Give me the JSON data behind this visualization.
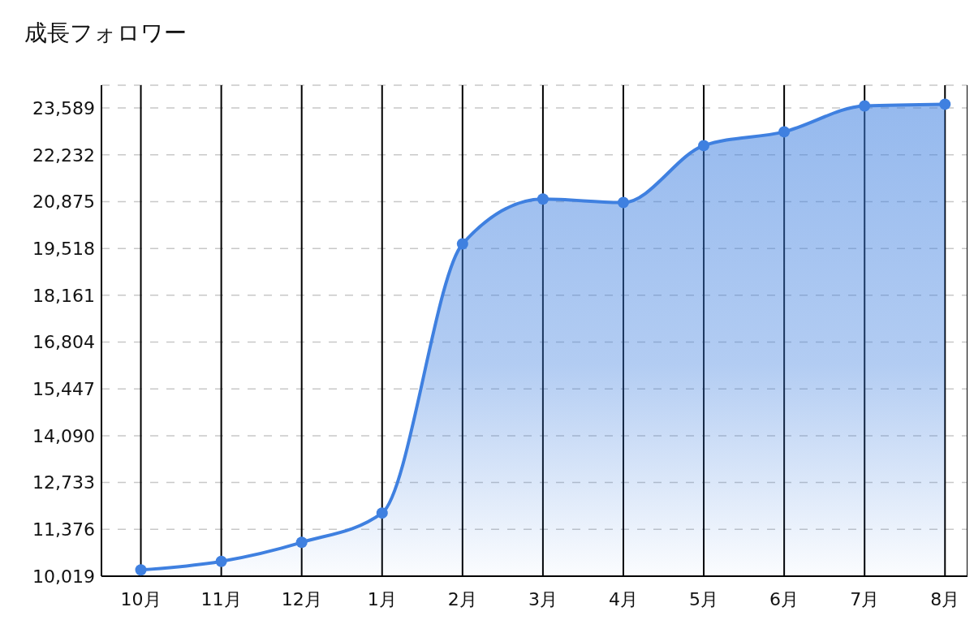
{
  "chart_data": {
    "type": "area",
    "title": "成長フォロワー",
    "categories": [
      "10月",
      "11月",
      "12月",
      "1月",
      "2月",
      "3月",
      "4月",
      "5月",
      "6月",
      "7月",
      "8月"
    ],
    "series": [
      {
        "color": "#3f80e0",
        "values": [
          10200,
          10450,
          11000,
          11850,
          19650,
          20950,
          20850,
          22500,
          22900,
          23650,
          23700
        ]
      }
    ],
    "ylim": [
      10019,
      24250
    ],
    "yticks": [
      {
        "value": 10019,
        "label": "10,019"
      },
      {
        "value": 11376,
        "label": "11,376"
      },
      {
        "value": 12733,
        "label": "12,733"
      },
      {
        "value": 14090,
        "label": "14,090"
      },
      {
        "value": 15447,
        "label": "15,447"
      },
      {
        "value": 16804,
        "label": "16,804"
      },
      {
        "value": 18161,
        "label": "18,161"
      },
      {
        "value": 19518,
        "label": "19,518"
      },
      {
        "value": 20875,
        "label": "20,875"
      },
      {
        "value": 22232,
        "label": "22,232"
      },
      {
        "value": 23589,
        "label": "23,589"
      }
    ],
    "grid": true,
    "marker": "circle",
    "legend": false
  }
}
